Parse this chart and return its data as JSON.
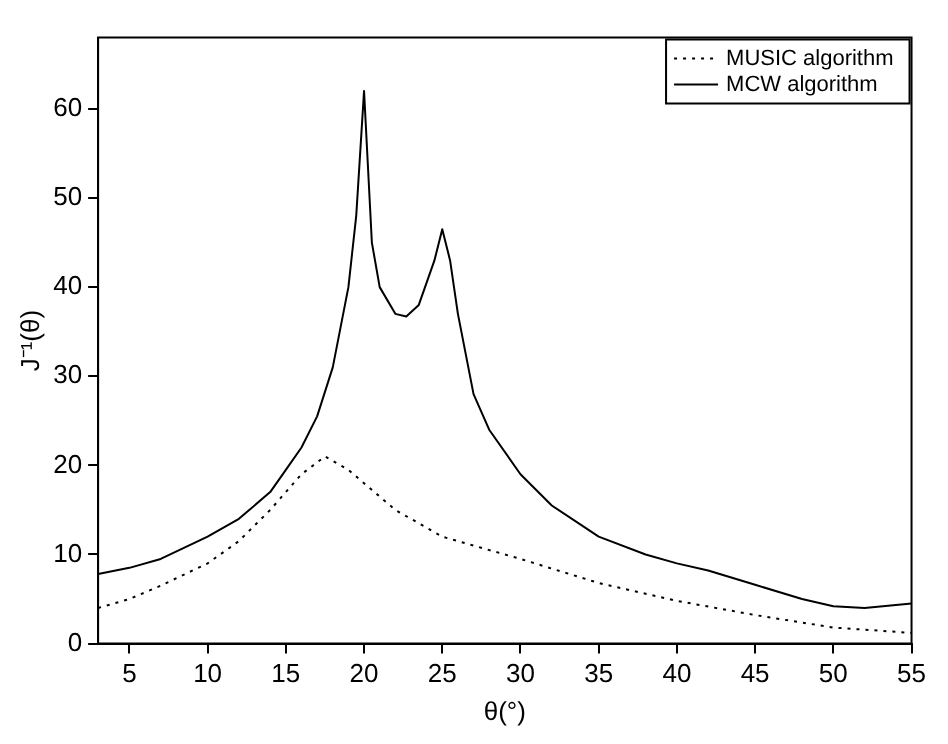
{
  "chart_data": {
    "type": "line",
    "xlabel": "θ(°)",
    "ylabel": "J⁻¹(θ)",
    "xlim": [
      3,
      55
    ],
    "ylim": [
      0,
      68
    ],
    "xticks": [
      5,
      10,
      15,
      20,
      25,
      30,
      35,
      40,
      45,
      50,
      55
    ],
    "yticks": [
      0,
      10,
      20,
      30,
      40,
      50,
      60
    ],
    "grid": false,
    "legend": "top right",
    "marker": "none",
    "series": [
      {
        "name": "MUSIC algorithm",
        "color": "#000000",
        "line_style": "dotted",
        "x": [
          3,
          5,
          7,
          10,
          12,
          14,
          15,
          16,
          17.5,
          19,
          20,
          22,
          25,
          30,
          35,
          40,
          45,
          50,
          55
        ],
        "values": [
          4,
          5,
          6.5,
          9,
          11.5,
          15,
          17,
          19,
          21,
          19.5,
          18,
          15,
          12,
          9.5,
          6.8,
          4.8,
          3.2,
          1.8,
          1.2
        ]
      },
      {
        "name": "MCW algorithm",
        "color": "#000000",
        "line_style": "solid",
        "x": [
          3,
          5,
          7,
          10,
          12,
          14,
          15,
          16,
          17,
          18,
          19,
          19.5,
          20,
          20.5,
          21,
          22,
          22.7,
          23.5,
          24.5,
          25,
          25.5,
          26,
          27,
          28,
          30,
          32,
          35,
          38,
          40,
          42,
          45,
          48,
          50,
          52,
          55
        ],
        "values": [
          7.8,
          8.5,
          9.5,
          12,
          14,
          17,
          19.5,
          22,
          25.5,
          31,
          40,
          48,
          62,
          45,
          40,
          37,
          36.7,
          38,
          43,
          46.5,
          43,
          37,
          28,
          24,
          19,
          15.5,
          12,
          10,
          9,
          8.2,
          6.6,
          5,
          4.2,
          4,
          4.5
        ]
      }
    ]
  }
}
